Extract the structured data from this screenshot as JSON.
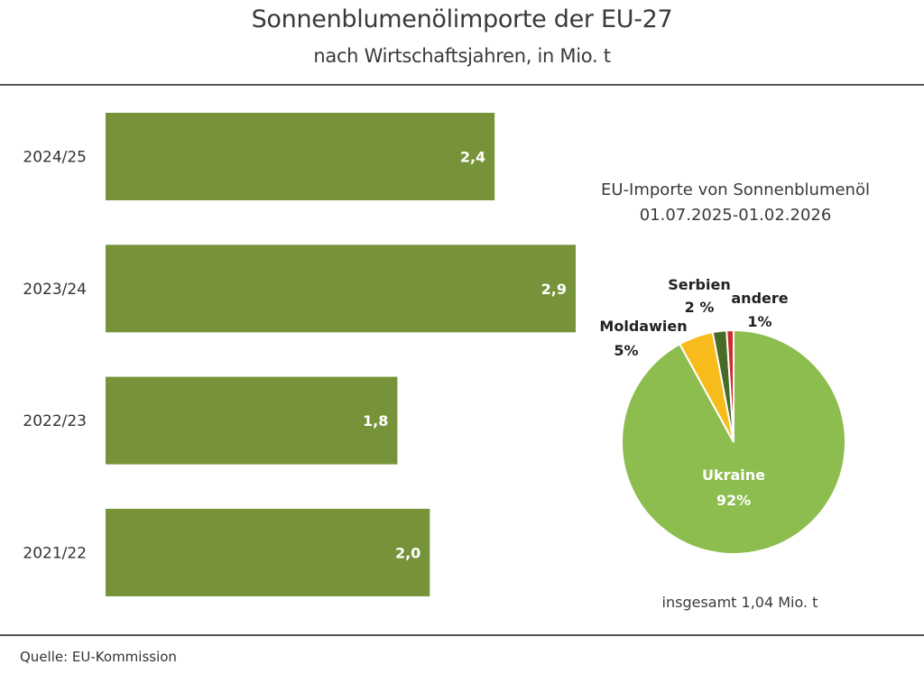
{
  "chart_data": [
    {
      "type": "bar",
      "orientation": "horizontal",
      "title": "Sonnenblumenölimporte der EU-27",
      "subtitle": "nach Wirtschaftsjahren, in Mio. t",
      "categories": [
        "2024/25",
        "2023/24",
        "2022/23",
        "2021/22"
      ],
      "values": [
        2.4,
        2.9,
        1.8,
        2.0
      ],
      "value_labels": [
        "2,4",
        "2,9",
        "1,8",
        "2,0"
      ],
      "xlabel": "",
      "ylabel": "",
      "xlim": [
        0,
        2.9
      ],
      "grid": false,
      "color": "#76933a"
    },
    {
      "type": "pie",
      "title": "EU-Importe von Sonnenblumenöl",
      "subtitle": "01.07.2025-01.02.2026",
      "slices": [
        {
          "label": "Ukraine",
          "value": 92,
          "value_label": "92%",
          "color": "#8dbd4e"
        },
        {
          "label": "Moldawien",
          "value": 5,
          "value_label": "5%",
          "color": "#f7bb1c"
        },
        {
          "label": "Serbien",
          "value": 2,
          "value_label": "2 %",
          "color": "#4a6b27"
        },
        {
          "label": "andere",
          "value": 1,
          "value_label": "1%",
          "color": "#d02b2e"
        }
      ],
      "annotation": "insgesamt 1,04 Mio. t"
    }
  ],
  "source": "Quelle:  EU-Kommission"
}
